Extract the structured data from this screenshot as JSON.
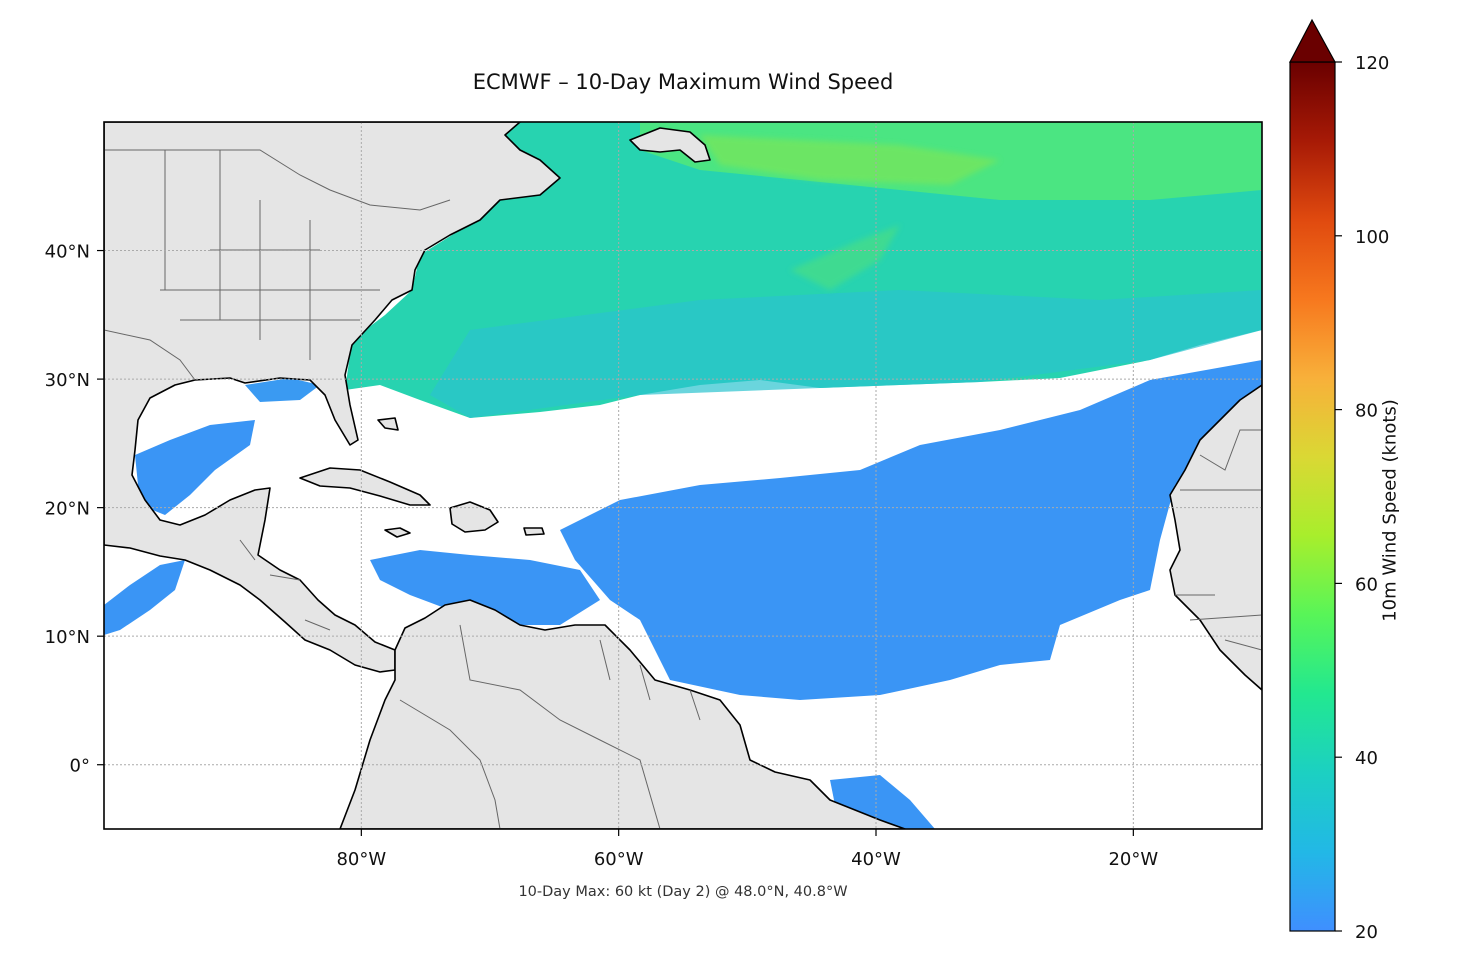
{
  "title": "ECMWF – 10-Day Maximum Wind Speed",
  "subtitle": "10-Day Max: 60 kt (Day 2) @ 48.0°N, 40.8°W",
  "colorbar": {
    "label": "10m Wind Speed (knots)",
    "min": 20,
    "max": 120,
    "extend": "max",
    "ticks": [
      "20",
      "40",
      "60",
      "80",
      "100",
      "120"
    ],
    "tick_values": [
      20,
      40,
      60,
      80,
      100,
      120
    ],
    "colormap_stops": [
      "#3f8fff",
      "#22b8e6",
      "#1cd0c2",
      "#22e890",
      "#58f558",
      "#a8ee2c",
      "#dad834",
      "#f8b03a",
      "#f7781e",
      "#e04a0f",
      "#a71a06",
      "#6a0000"
    ]
  },
  "map": {
    "projection": "PlateCarree",
    "lon_range": [
      -100,
      -10
    ],
    "lat_range": [
      -5,
      50
    ],
    "lon_ticks": [
      "80°W",
      "60°W",
      "40°W",
      "20°W"
    ],
    "lon_tick_values": [
      -80,
      -60,
      -40,
      -20
    ],
    "lat_ticks": [
      "0°",
      "10°N",
      "20°N",
      "30°N",
      "40°N"
    ],
    "lat_tick_values": [
      0,
      10,
      20,
      30,
      40
    ],
    "grid": true,
    "land_color": "#e5e5e5",
    "ocean_color": "#ffffff",
    "max_point": {
      "lat": 48.0,
      "lon": -40.8,
      "value_kt": 60,
      "day": 2
    }
  }
}
